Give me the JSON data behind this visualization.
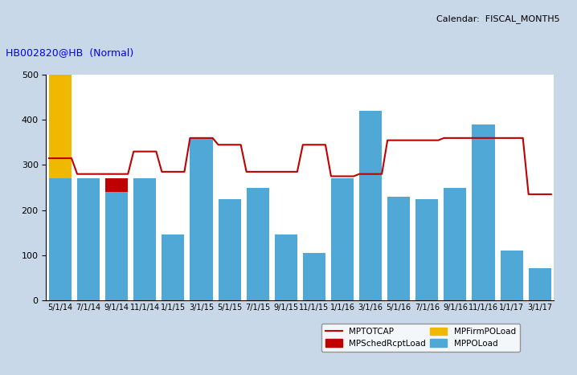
{
  "x_labels": [
    "5/1/14",
    "7/1/14",
    "9/1/14",
    "11/1/14",
    "1/1/15",
    "3/1/15",
    "5/1/15",
    "7/1/15",
    "9/1/15",
    "11/1/15",
    "1/1/16",
    "3/1/16",
    "5/1/16",
    "7/1/16",
    "9/1/16",
    "11/1/16",
    "1/1/17",
    "3/1/17"
  ],
  "MPPOLoad": [
    270,
    270,
    240,
    270,
    145,
    360,
    225,
    250,
    145,
    105,
    270,
    420,
    230,
    225,
    250,
    390,
    110,
    70
  ],
  "MPFirmPOLoad": [
    240,
    0,
    0,
    0,
    0,
    0,
    0,
    0,
    0,
    0,
    0,
    0,
    0,
    0,
    0,
    0,
    0,
    0
  ],
  "MPSchedRcptLoad": [
    20,
    0,
    30,
    0,
    0,
    0,
    0,
    0,
    0,
    0,
    0,
    0,
    0,
    0,
    0,
    0,
    0,
    0
  ],
  "MPTOTCAP": [
    315,
    280,
    280,
    330,
    285,
    360,
    345,
    285,
    285,
    345,
    275,
    280,
    355,
    355,
    360,
    360,
    360,
    235
  ],
  "ylim": [
    0,
    500
  ],
  "yticks": [
    0,
    100,
    200,
    300,
    400,
    500
  ],
  "bar_color_MPPOLoad": "#4FA8D5",
  "bar_color_MPFirmPOLoad": "#F0B800",
  "bar_color_MPSchedRcptLoad": "#C00000",
  "line_color_MPTOTCAP": "#C00000",
  "bg_color": "#FFFFFF",
  "outer_bg": "#C8D8E8",
  "title": "HB002820@HB  (Normal)",
  "calendar_label": "Calendar:  FISCAL_MONTH5",
  "legend_labels": [
    "MPTOTCAP",
    "MPSchedRcptLoad",
    "MPFirmPOLoad",
    "MPPOLoad"
  ]
}
